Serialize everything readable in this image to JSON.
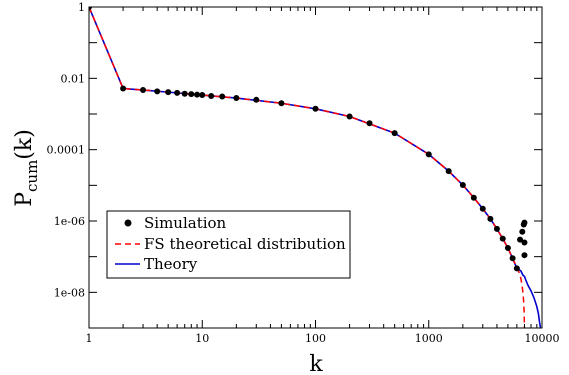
{
  "chart_data": {
    "type": "line",
    "xlabel": "k",
    "ylabel_main": "P",
    "ylabel_sub": "cum",
    "ylabel_suffix": "(k)",
    "xscale": "log",
    "yscale": "log",
    "xlim": [
      1,
      10000
    ],
    "ylim": [
      1e-09,
      1
    ],
    "x_ticks": [
      {
        "value": 1,
        "label": "1"
      },
      {
        "value": 10,
        "label": "10"
      },
      {
        "value": 100,
        "label": "100"
      },
      {
        "value": 1000,
        "label": "1000"
      },
      {
        "value": 10000,
        "label": "10000"
      }
    ],
    "y_ticks": [
      {
        "value": 1,
        "label": "1"
      },
      {
        "value": 0.01,
        "label": "0.01"
      },
      {
        "value": 0.0001,
        "label": "0.0001"
      },
      {
        "value": 1e-06,
        "label": "1e-06"
      },
      {
        "value": 1e-08,
        "label": "1e-08"
      }
    ],
    "grid": false,
    "legend_position": "bottom-left",
    "series": [
      {
        "name": "Simulation",
        "style": "markers",
        "color": "#000000",
        "x": [
          1,
          2,
          3,
          4,
          5,
          6,
          7,
          8,
          9,
          10,
          12,
          15,
          20,
          30,
          50,
          100,
          200,
          300,
          500,
          1000,
          1500,
          2000,
          2500,
          3000,
          3500,
          4000,
          4500,
          5000,
          5500,
          6000,
          6400,
          6700,
          6900,
          7000,
          7000,
          7000
        ],
        "y": [
          1,
          0.0052,
          0.0047,
          0.0043,
          0.0041,
          0.0039,
          0.0037,
          0.0036,
          0.0035,
          0.0034,
          0.0032,
          0.0031,
          0.0028,
          0.0025,
          0.002,
          0.0014,
          0.00085,
          0.00055,
          0.00029,
          7.4e-05,
          2.5e-05,
          1.02e-05,
          4.5e-06,
          2.2e-06,
          1.15e-06,
          6e-07,
          3.2e-07,
          1.75e-07,
          9e-08,
          4.7e-08,
          3e-07,
          5e-07,
          8e-07,
          9e-07,
          2.5e-07,
          1.1e-07
        ]
      },
      {
        "name": "FS theoretical distribution",
        "style": "dashed",
        "color": "#ff0000",
        "x": [
          1,
          2,
          3,
          5,
          10,
          20,
          50,
          100,
          200,
          500,
          1000,
          1500,
          2000,
          2500,
          3000,
          3500,
          4000,
          4500,
          5000,
          5500,
          6000,
          6300,
          6500,
          6700,
          6800,
          6900,
          6950,
          7000
        ],
        "y": [
          1,
          0.0052,
          0.0047,
          0.0041,
          0.0034,
          0.0028,
          0.002,
          0.0014,
          0.00085,
          0.00029,
          7.4e-05,
          2.5e-05,
          1.02e-05,
          4.5e-06,
          2.2e-06,
          1.15e-06,
          6e-07,
          3.2e-07,
          1.75e-07,
          9e-08,
          5e-08,
          3.5e-08,
          2.5e-08,
          1.4e-08,
          9e-09,
          5e-09,
          3e-09,
          1e-09
        ]
      },
      {
        "name": "Theory",
        "style": "solid",
        "color": "#0000cc",
        "x": [
          1,
          2,
          3,
          5,
          10,
          20,
          50,
          100,
          200,
          500,
          1000,
          1500,
          2000,
          2500,
          3000,
          3500,
          4000,
          4500,
          5000,
          5500,
          6000,
          6500,
          6800,
          7000,
          7200,
          7500,
          8000,
          8500,
          9000,
          9300,
          9500,
          9700
        ],
        "y": [
          1,
          0.0052,
          0.0047,
          0.0041,
          0.0034,
          0.0028,
          0.002,
          0.0014,
          0.00085,
          0.00029,
          7.4e-05,
          2.5e-05,
          1.02e-05,
          4.5e-06,
          2.2e-06,
          1.15e-06,
          6e-07,
          3.2e-07,
          1.75e-07,
          9e-08,
          4.7e-08,
          4e-08,
          3e-08,
          2.8e-08,
          2.2e-08,
          1.6e-08,
          1.1e-08,
          7e-09,
          4e-09,
          2.5e-09,
          1.5e-09,
          1e-09
        ]
      }
    ]
  }
}
